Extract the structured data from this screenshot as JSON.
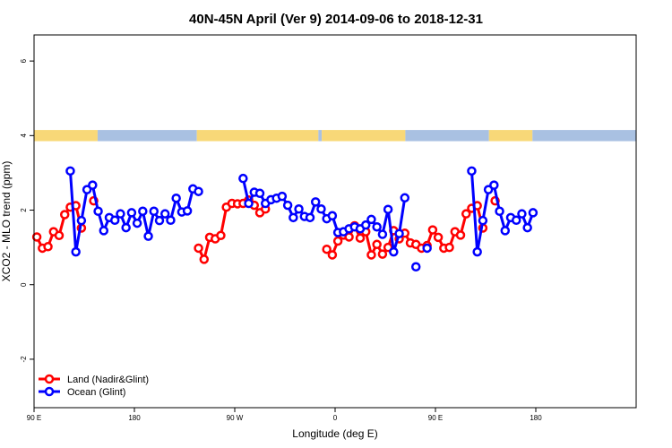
{
  "chart_data": {
    "type": "line",
    "title": "40N-45N April (Ver 9)   2014-09-06 to 2018-12-31",
    "xlabel": "Longitude (deg E)",
    "ylabel": "XCO2 - MLO trend (ppm)",
    "xlim": [
      90,
      630
    ],
    "ylim": [
      -3.3,
      6.7
    ],
    "x_ticks": [
      {
        "value": 90,
        "label": "90 E"
      },
      {
        "value": 180,
        "label": "180"
      },
      {
        "value": 270,
        "label": "90 W"
      },
      {
        "value": 360,
        "label": "0"
      },
      {
        "value": 450,
        "label": "90 E"
      },
      {
        "value": 540,
        "label": "180"
      }
    ],
    "y_ticks": [
      {
        "value": -2,
        "label": "-2"
      },
      {
        "value": 0,
        "label": "0"
      },
      {
        "value": 2,
        "label": "2"
      },
      {
        "value": 4,
        "label": "4"
      },
      {
        "value": 6,
        "label": "6"
      }
    ],
    "grid": false,
    "legend_position": "bottom-left",
    "landmask_band": {
      "y_range": [
        3.85,
        4.15
      ],
      "land_color": "#F8D878",
      "ocean_color": "#A9C1E2",
      "segments": [
        {
          "type": "land",
          "x": [
            90,
            147
          ]
        },
        {
          "type": "ocean",
          "x": [
            147,
            236
          ]
        },
        {
          "type": "land",
          "x": [
            236,
            345
          ]
        },
        {
          "type": "ocean",
          "x": [
            345,
            348
          ]
        },
        {
          "type": "land",
          "x": [
            348,
            423
          ]
        },
        {
          "type": "ocean",
          "x": [
            423,
            498
          ]
        },
        {
          "type": "land",
          "x": [
            498,
            537
          ]
        },
        {
          "type": "ocean",
          "x": [
            537,
            630
          ]
        }
      ]
    },
    "series": [
      {
        "name": "Land (Nadir&Glint)",
        "color": "#FF0000",
        "points": [
          [
            92.5,
            1.28
          ],
          [
            97.5,
            0.98
          ],
          [
            102.5,
            1.02
          ],
          [
            107.5,
            1.42
          ],
          [
            112.5,
            1.32
          ],
          [
            117.5,
            1.88
          ],
          [
            122.5,
            2.08
          ],
          [
            127.5,
            2.12
          ],
          [
            132.5,
            1.52
          ],
          [
            null,
            null
          ],
          [
            143.5,
            2.25
          ],
          [
            null,
            null
          ],
          [
            237.5,
            0.98
          ],
          [
            242.5,
            0.68
          ],
          [
            247.5,
            1.27
          ],
          [
            252.5,
            1.23
          ],
          [
            257.5,
            1.32
          ],
          [
            262.5,
            2.08
          ],
          [
            267.5,
            2.18
          ],
          [
            272.5,
            2.17
          ],
          [
            277.5,
            2.18
          ],
          [
            282.5,
            2.27
          ],
          [
            287.5,
            2.13
          ],
          [
            292.5,
            1.93
          ],
          [
            297.5,
            2.03
          ],
          [
            null,
            null
          ],
          [
            352.5,
            0.95
          ],
          [
            357.5,
            0.8
          ],
          [
            362.5,
            1.17
          ],
          [
            367.5,
            1.33
          ],
          [
            372.5,
            1.28
          ],
          [
            377.5,
            1.58
          ],
          [
            382.5,
            1.25
          ],
          [
            387.5,
            1.42
          ],
          [
            392.5,
            0.8
          ],
          [
            397.5,
            1.08
          ],
          [
            402.5,
            0.82
          ],
          [
            407.5,
            1.0
          ],
          [
            412.5,
            1.45
          ],
          [
            417.5,
            1.23
          ],
          [
            422.5,
            1.38
          ],
          [
            427.5,
            1.12
          ],
          [
            432.5,
            1.08
          ],
          [
            437.5,
            0.98
          ],
          [
            442.5,
            1.05
          ],
          [
            447.5,
            1.47
          ],
          [
            452.5,
            1.27
          ],
          [
            457.5,
            0.98
          ],
          [
            462.5,
            1.0
          ],
          [
            467.5,
            1.42
          ],
          [
            472.5,
            1.33
          ],
          [
            477.5,
            1.9
          ],
          [
            482.5,
            2.05
          ],
          [
            487.5,
            2.12
          ],
          [
            492.5,
            1.52
          ],
          [
            null,
            null
          ],
          [
            503.5,
            2.25
          ]
        ]
      },
      {
        "name": "Ocean (Glint)",
        "color": "#0000FF",
        "points": [
          [
            122.5,
            3.05
          ],
          [
            127.5,
            0.88
          ],
          [
            132.5,
            1.72
          ],
          [
            137.5,
            2.55
          ],
          [
            142.5,
            2.67
          ],
          [
            147.5,
            1.97
          ],
          [
            152.5,
            1.45
          ],
          [
            157.5,
            1.8
          ],
          [
            162.5,
            1.73
          ],
          [
            167.5,
            1.9
          ],
          [
            172.5,
            1.53
          ],
          [
            177.5,
            1.93
          ],
          [
            182.5,
            1.65
          ],
          [
            187.5,
            1.97
          ],
          [
            192.5,
            1.3
          ],
          [
            197.5,
            1.97
          ],
          [
            202.5,
            1.72
          ],
          [
            207.5,
            1.9
          ],
          [
            212.5,
            1.73
          ],
          [
            217.5,
            2.32
          ],
          [
            222.5,
            1.95
          ],
          [
            227.5,
            1.98
          ],
          [
            232.5,
            2.57
          ],
          [
            237.5,
            2.5
          ],
          [
            null,
            null
          ],
          [
            277.5,
            2.85
          ],
          [
            282.5,
            2.18
          ],
          [
            287.5,
            2.48
          ],
          [
            292.5,
            2.45
          ],
          [
            297.5,
            2.18
          ],
          [
            302.5,
            2.28
          ],
          [
            307.5,
            2.32
          ],
          [
            312.5,
            2.37
          ],
          [
            317.5,
            2.13
          ],
          [
            322.5,
            1.8
          ],
          [
            327.5,
            2.03
          ],
          [
            332.5,
            1.83
          ],
          [
            337.5,
            1.8
          ],
          [
            342.5,
            2.22
          ],
          [
            347.5,
            2.03
          ],
          [
            352.5,
            1.77
          ],
          [
            357.5,
            1.85
          ],
          [
            362.5,
            1.4
          ],
          [
            367.5,
            1.42
          ],
          [
            372.5,
            1.5
          ],
          [
            377.5,
            1.55
          ],
          [
            382.5,
            1.5
          ],
          [
            387.5,
            1.6
          ],
          [
            392.5,
            1.75
          ],
          [
            397.5,
            1.55
          ],
          [
            402.5,
            1.35
          ],
          [
            407.5,
            2.02
          ],
          [
            412.5,
            0.88
          ],
          [
            417.5,
            1.37
          ],
          [
            422.5,
            2.33
          ],
          [
            null,
            null
          ],
          [
            432.5,
            0.48
          ],
          [
            null,
            null
          ],
          [
            442.5,
            0.98
          ],
          [
            null,
            null
          ],
          [
            482.5,
            3.05
          ],
          [
            487.5,
            0.88
          ],
          [
            492.5,
            1.72
          ],
          [
            497.5,
            2.55
          ],
          [
            502.5,
            2.67
          ],
          [
            507.5,
            1.97
          ],
          [
            512.5,
            1.45
          ],
          [
            517.5,
            1.8
          ],
          [
            522.5,
            1.73
          ],
          [
            527.5,
            1.9
          ],
          [
            532.5,
            1.53
          ],
          [
            537.5,
            1.93
          ]
        ]
      }
    ]
  }
}
